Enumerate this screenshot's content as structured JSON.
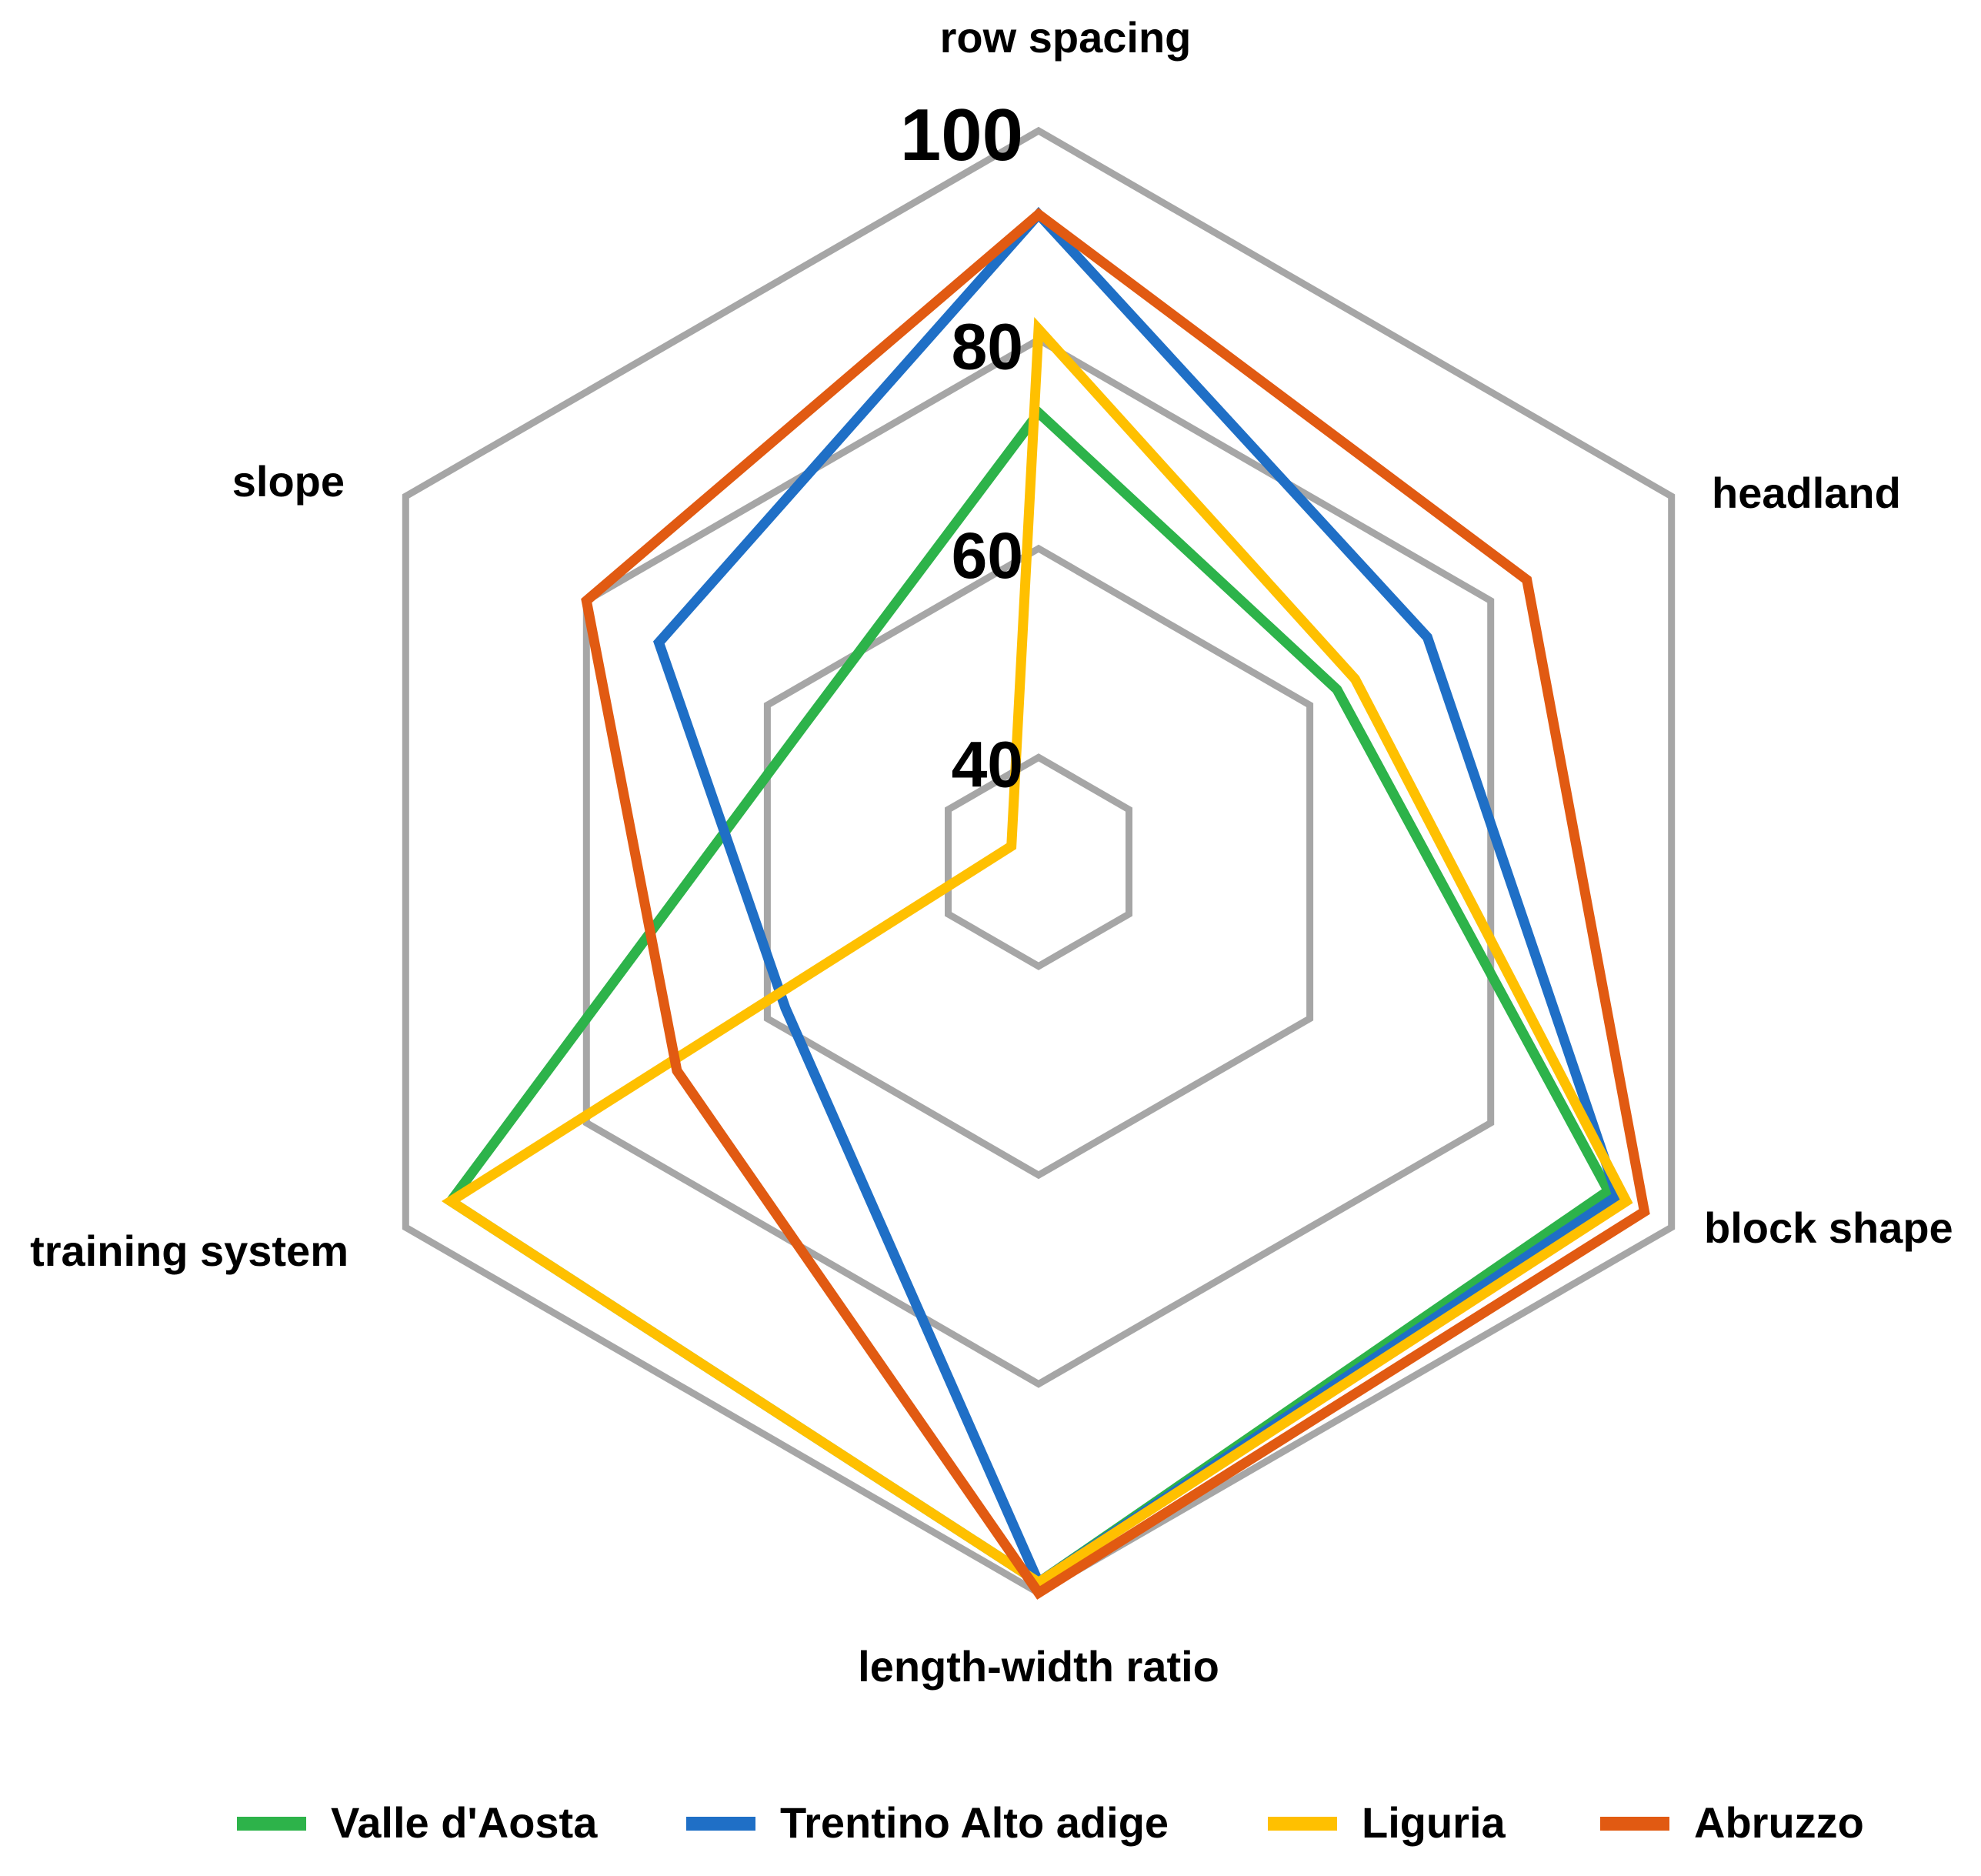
{
  "chart_data": {
    "type": "radar",
    "axes": [
      "row spacing",
      "headland",
      "block shape",
      "length-width ratio",
      "training system",
      "slope"
    ],
    "rlim": [
      30,
      100
    ],
    "tick_labels": [
      "40",
      "60",
      "80",
      "100"
    ],
    "tick_values": [
      40,
      60,
      80,
      100
    ],
    "grid": true,
    "legend_position": "bottom",
    "series": [
      {
        "name": "Valle d'Aosta",
        "color": "#2DB34A",
        "values": [
          73,
          63,
          93,
          99,
          95,
          56
        ]
      },
      {
        "name": "Trentino Alto adige",
        "color": "#1F6FC6",
        "values": [
          92,
          73,
          94,
          99,
          58,
          72
        ]
      },
      {
        "name": "Liguria",
        "color": "#FFC000",
        "values": [
          81,
          65,
          95,
          99,
          95,
          33
        ]
      },
      {
        "name": "Abruzzo",
        "color": "#E15A12",
        "values": [
          92,
          84,
          97,
          100,
          70,
          80
        ]
      }
    ],
    "grid_color": "#A6A6A6"
  }
}
